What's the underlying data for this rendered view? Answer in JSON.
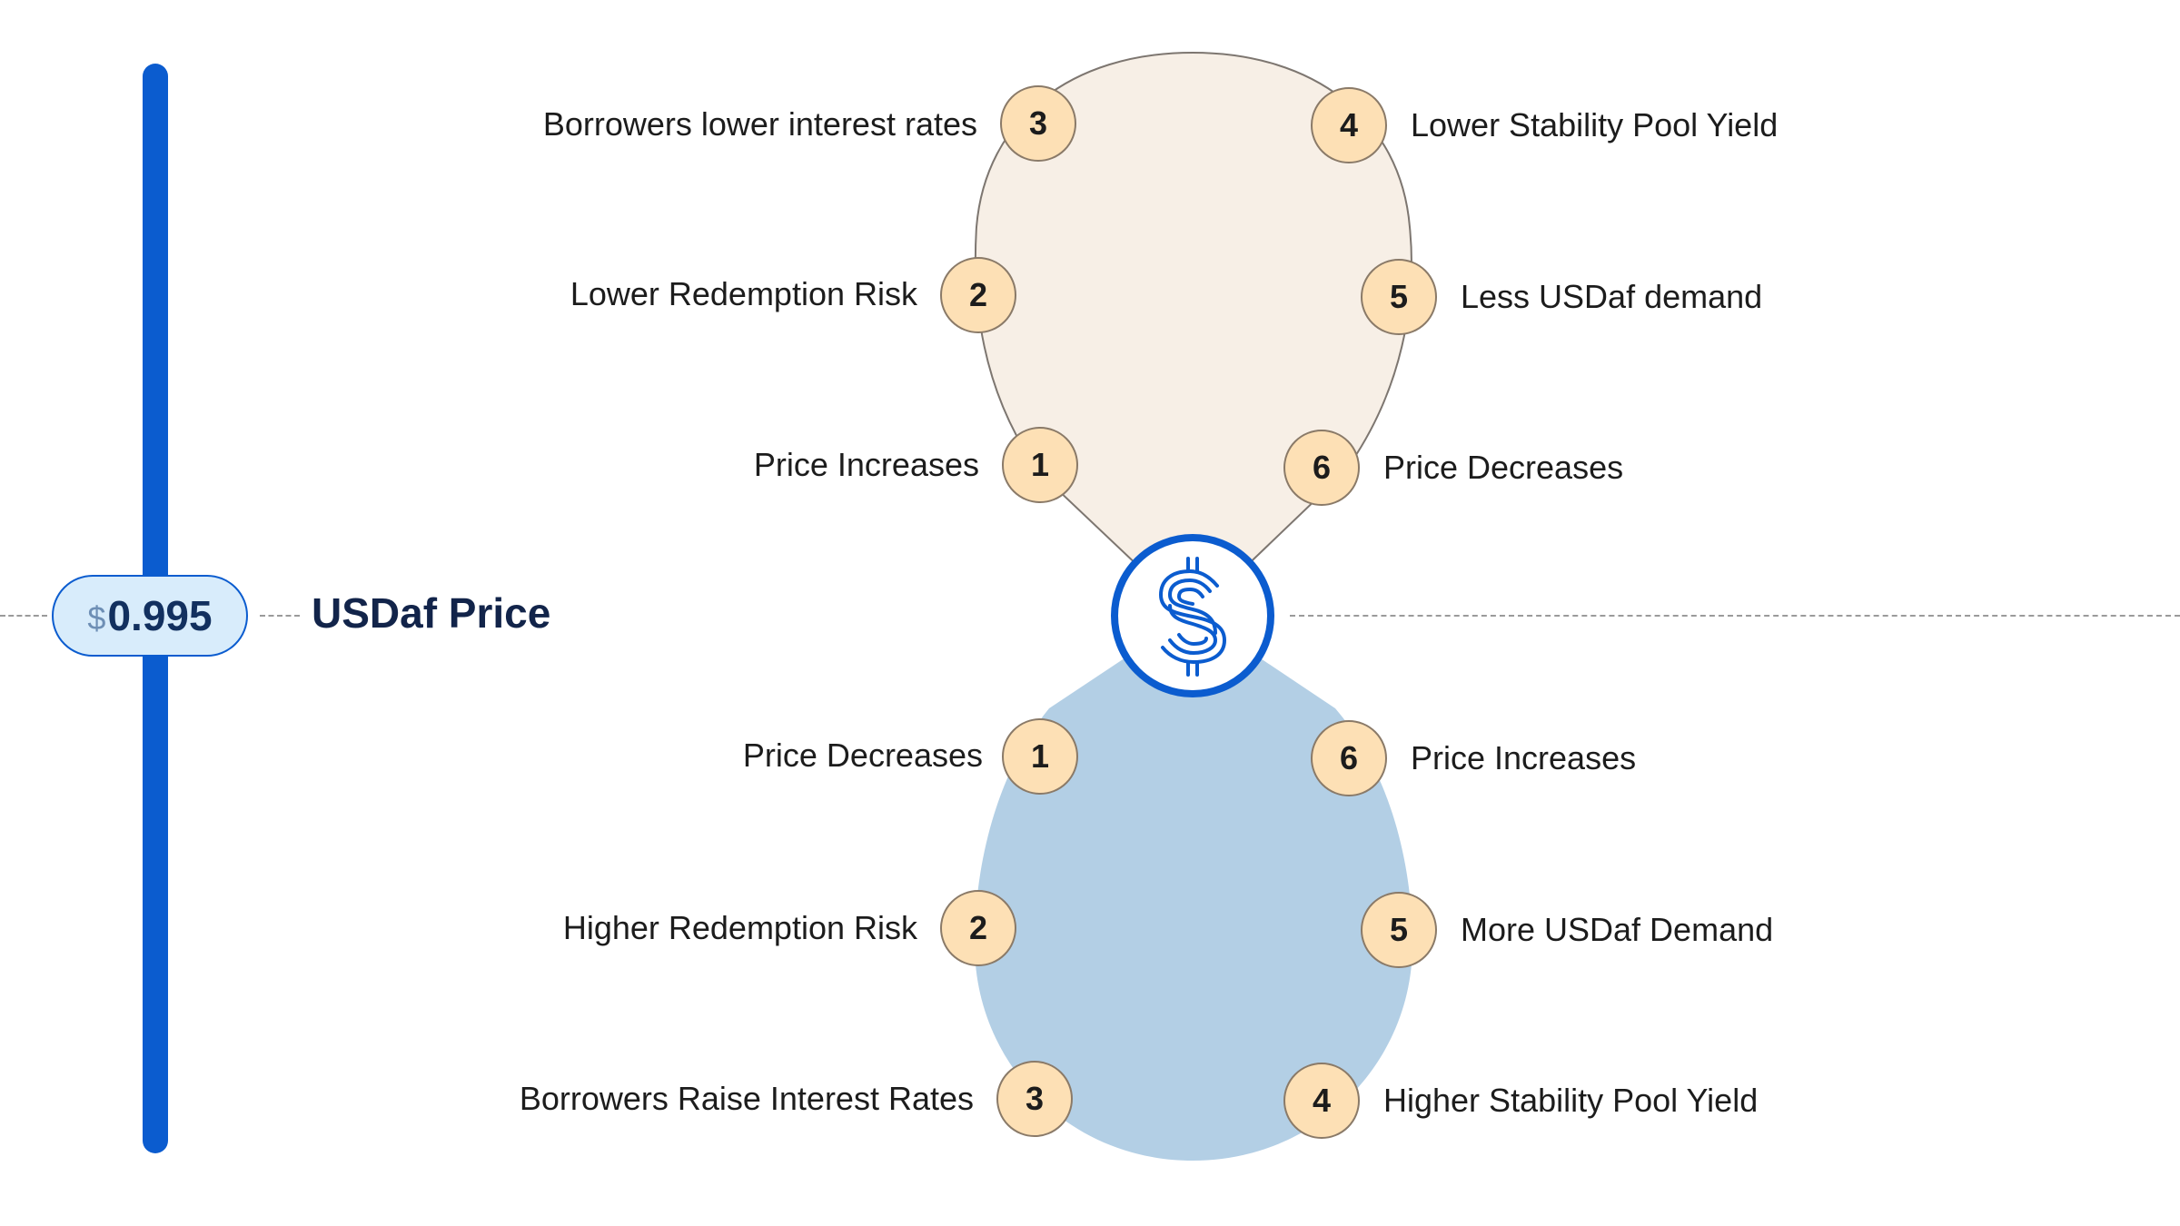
{
  "price": {
    "currency": "$",
    "value": "0.995",
    "title": "USDaf Price"
  },
  "colors": {
    "accent": "#0b5ccf",
    "upper_lobe": "#f7efe6",
    "lower_lobe": "#b3cfe5",
    "step_circle": "#fde0b5"
  },
  "center_icon": "dollar-coin-icon",
  "upper_loop": {
    "steps": [
      {
        "num": "1",
        "label": "Price Increases"
      },
      {
        "num": "2",
        "label": "Lower Redemption Risk"
      },
      {
        "num": "3",
        "label": "Borrowers lower interest rates"
      },
      {
        "num": "4",
        "label": "Lower Stability Pool Yield"
      },
      {
        "num": "5",
        "label": "Less USDaf demand"
      },
      {
        "num": "6",
        "label": "Price Decreases"
      }
    ]
  },
  "lower_loop": {
    "steps": [
      {
        "num": "1",
        "label": "Price Decreases"
      },
      {
        "num": "2",
        "label": "Higher Redemption Risk"
      },
      {
        "num": "3",
        "label": "Borrowers Raise Interest Rates"
      },
      {
        "num": "4",
        "label": "Higher Stability Pool Yield"
      },
      {
        "num": "5",
        "label": "More USDaf Demand"
      },
      {
        "num": "6",
        "label": "Price Increases"
      }
    ]
  }
}
